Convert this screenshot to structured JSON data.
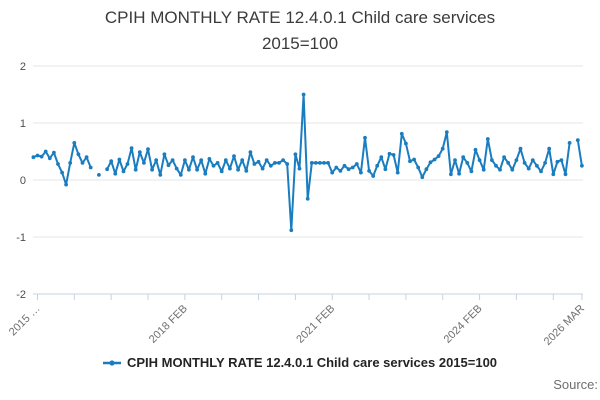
{
  "header": {
    "title_line1": "CPIH MONTHLY RATE 12.4.0.1 Child care services",
    "title_line2": "2015=100"
  },
  "legend": {
    "label": "CPIH MONTHLY RATE 12.4.0.1 Child care services 2015=100"
  },
  "footer": {
    "source_label": "Source:"
  },
  "chart_data": {
    "type": "line",
    "title": "CPIH MONTHLY RATE 12.4.0.1 Child care services 2015=100",
    "ylabel": "",
    "xlabel": "",
    "ylim": [
      -2,
      2
    ],
    "y_ticks": [
      2,
      1,
      0,
      -1,
      -2
    ],
    "y_tick_labels": [
      "2",
      "1",
      "0",
      "-1",
      "-2"
    ],
    "grid": "horizontal",
    "legend_position": "bottom-center",
    "x_tick_interval_months": 9,
    "x_minor_tick_month_indices": [
      1,
      10,
      19,
      28,
      37,
      46,
      55,
      64,
      73,
      82,
      91,
      100,
      109,
      118,
      127,
      134
    ],
    "x_labeled_ticks": [
      {
        "month_index": 1,
        "label": "2015 …"
      },
      {
        "month_index": 37,
        "label": "2018 FEB"
      },
      {
        "month_index": 73,
        "label": "2021 FEB"
      },
      {
        "month_index": 109,
        "label": "2024 FEB"
      },
      {
        "month_index": 134,
        "label": "2026 MAR"
      }
    ],
    "series": [
      {
        "name": "CPIH MONTHLY RATE 12.4.0.1 Child care services 2015=100",
        "frequency": "monthly",
        "start_month": "2015-01",
        "end_month": "2026-03",
        "values": [
          0.4,
          0.43,
          0.41,
          0.5,
          0.38,
          0.48,
          0.28,
          0.13,
          -0.08,
          0.3,
          0.65,
          0.45,
          0.3,
          0.4,
          0.22,
          null,
          0.09,
          null,
          0.19,
          0.33,
          0.11,
          0.36,
          0.15,
          0.28,
          0.56,
          0.18,
          0.49,
          0.3,
          0.54,
          0.18,
          0.35,
          0.09,
          0.45,
          0.26,
          0.35,
          0.2,
          0.09,
          0.35,
          0.18,
          0.4,
          0.18,
          0.35,
          0.11,
          0.37,
          0.25,
          0.3,
          0.15,
          0.35,
          0.2,
          0.42,
          0.18,
          0.35,
          0.16,
          0.49,
          0.28,
          0.32,
          0.2,
          0.35,
          0.25,
          0.3,
          0.3,
          0.35,
          0.28,
          -0.88,
          0.45,
          0.2,
          1.5,
          -0.33,
          0.3,
          0.3,
          0.3,
          0.3,
          0.3,
          0.13,
          0.22,
          0.16,
          0.25,
          0.19,
          0.22,
          0.28,
          0.13,
          0.74,
          0.16,
          0.07,
          0.25,
          0.4,
          0.19,
          0.46,
          0.44,
          0.13,
          0.81,
          0.64,
          0.33,
          0.36,
          0.22,
          0.05,
          0.19,
          0.31,
          0.36,
          0.42,
          0.55,
          0.84,
          0.1,
          0.35,
          0.11,
          0.4,
          0.3,
          0.15,
          0.53,
          0.35,
          0.18,
          0.72,
          0.35,
          0.25,
          0.18,
          0.4,
          0.3,
          0.18,
          0.35,
          0.55,
          0.3,
          0.2,
          0.35,
          0.25,
          0.15,
          0.3,
          0.55,
          0.1,
          0.32,
          0.35,
          0.1,
          0.65,
          null,
          0.7,
          0.25
        ]
      }
    ],
    "colors": {
      "line": "#1a7dc0",
      "gridline": "#e6e6e6",
      "axis": "#c4d3e1",
      "title_text": "#3b3b3b",
      "x_tick_text": "#6f6f6f",
      "y_tick_text": "#4d4d4d",
      "legend_text": "#242424",
      "source_text": "#6e6e6e"
    }
  }
}
